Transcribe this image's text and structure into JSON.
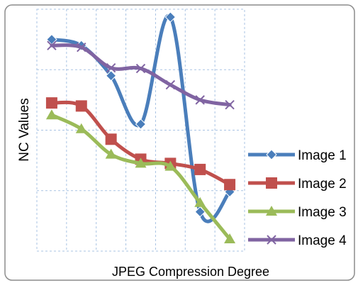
{
  "chart_data": {
    "type": "line",
    "xlabel": "JPEG Compression Degree",
    "ylabel": "NC Values",
    "x": [
      1,
      2,
      3,
      4,
      5,
      6,
      7
    ],
    "ylim": [
      0,
      4
    ],
    "grid": true,
    "legend_position": "right",
    "series": [
      {
        "name": "Image 1",
        "color": "#4a7ebb",
        "marker": "diamond",
        "values": [
          3.5,
          3.4,
          2.9,
          2.1,
          3.87,
          0.65,
          0.98
        ]
      },
      {
        "name": "Image 2",
        "color": "#c0504d",
        "marker": "square",
        "values": [
          2.45,
          2.4,
          1.85,
          1.52,
          1.45,
          1.35,
          1.1
        ]
      },
      {
        "name": "Image 3",
        "color": "#9bbb59",
        "marker": "triangle",
        "values": [
          2.25,
          2.02,
          1.6,
          1.45,
          1.4,
          0.8,
          0.2
        ]
      },
      {
        "name": "Image 4",
        "color": "#8064a2",
        "marker": "x",
        "values": [
          3.4,
          3.37,
          3.03,
          3.02,
          2.75,
          2.5,
          2.42
        ]
      }
    ]
  }
}
